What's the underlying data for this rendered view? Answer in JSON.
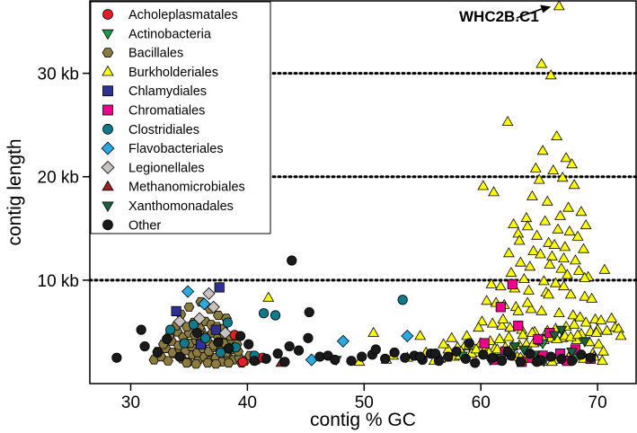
{
  "chart_data": {
    "type": "scatter",
    "title": "",
    "xlabel": "contig % GC",
    "ylabel": "contig length",
    "xlim": [
      26.5,
      73.3
    ],
    "ylim": [
      0,
      37000
    ],
    "x_ticks": [
      30,
      40,
      50,
      60,
      70
    ],
    "x_tick_labels": [
      "30",
      "40",
      "50",
      "60",
      "70"
    ],
    "y_ticks": [
      10000,
      20000,
      30000
    ],
    "y_tick_labels": [
      "10 kb",
      "20 kb",
      "30 kb"
    ],
    "reference_lines": [
      10000,
      20000,
      30000
    ],
    "grid": false,
    "legend_position": "top-left",
    "annotations": [
      {
        "text": "WHC2B.C1",
        "points_to": {
          "x": 66.7,
          "y": 36700
        }
      }
    ],
    "series": [
      {
        "name": "Acholeplasmatales",
        "marker": "circle",
        "color": "#e31e24",
        "x": [
          38.9,
          41.3,
          39.6
        ],
        "y": [
          4700,
          2500,
          2100
        ]
      },
      {
        "name": "Actinobacteria",
        "marker": "triangle-down",
        "color": "#1a9a4a",
        "x": [
          47.6,
          58.4,
          65.3,
          68.2
        ],
        "y": [
          2300,
          2700,
          3900,
          2600
        ]
      },
      {
        "name": "Bacillales",
        "marker": "hexagon",
        "color": "#8c7b3e",
        "x": [
          32.0,
          32.6,
          33.2,
          33.8,
          34.4,
          34.9,
          35.3,
          35.8,
          36.3,
          36.8,
          37.3,
          37.8,
          38.3,
          38.8,
          39.3,
          39.8,
          32.3,
          33.0,
          33.6,
          34.2,
          34.7,
          35.2,
          35.7,
          36.2,
          36.7,
          37.2,
          37.7,
          38.2,
          38.7,
          39.2,
          32.8,
          33.5,
          34.1,
          34.6,
          35.1,
          35.6,
          36.1,
          36.6,
          37.1,
          37.6,
          38.1,
          38.6,
          39.1,
          33.3,
          34.0,
          34.5,
          35.0,
          35.5,
          36.0,
          36.5,
          37.0,
          37.5,
          38.0,
          38.5,
          33.9,
          34.8,
          35.4,
          35.9,
          36.4,
          36.9,
          37.4,
          37.9,
          34.3,
          35.0,
          36.0,
          36.8,
          37.5,
          38.2,
          40.2,
          40.8,
          34.8,
          35.6,
          36.6,
          37.3,
          38.4,
          39.5
        ],
        "y": [
          2300,
          2600,
          2200,
          2900,
          2400,
          2100,
          2800,
          2300,
          2600,
          2200,
          2500,
          2100,
          2700,
          2300,
          2500,
          2200,
          3100,
          3400,
          3000,
          3300,
          3200,
          3600,
          3000,
          3400,
          3100,
          3500,
          3200,
          3000,
          3300,
          3100,
          3800,
          4100,
          3700,
          4000,
          3900,
          4200,
          3800,
          4100,
          3700,
          4000,
          3900,
          4300,
          3800,
          4600,
          5000,
          4500,
          4900,
          4700,
          5200,
          4600,
          4900,
          4500,
          4800,
          4600,
          5600,
          5500,
          5900,
          5400,
          6000,
          5700,
          5500,
          5300,
          6700,
          7400,
          7900,
          7200,
          6600,
          6300,
          2700,
          2300,
          2000,
          1900,
          2000,
          1900,
          2000,
          2000
        ]
      },
      {
        "name": "Burkholderiales",
        "marker": "triangle-up",
        "color": "#ffff00",
        "x": [
          66.7,
          65.2,
          66.0,
          62.3,
          65.3,
          66.5,
          67.3,
          67.8,
          66.2,
          67.0,
          65.0,
          64.7,
          60.2,
          61.1,
          68.0,
          64.4,
          65.7,
          67.5,
          68.6,
          66.8,
          63.9,
          65.5,
          62.8,
          64.0,
          69.0,
          66.6,
          67.6,
          63.2,
          64.8,
          68.3,
          63.3,
          65.8,
          66.3,
          67.2,
          68.8,
          64.5,
          62.4,
          65.1,
          66.1,
          67.1,
          68.1,
          63.4,
          65.9,
          64.2,
          66.9,
          68.4,
          62.6,
          67.4,
          69.2,
          63.7,
          65.4,
          66.4,
          60.9,
          61.7,
          62.9,
          64.1,
          65.6,
          67.7,
          68.9,
          69.5,
          60.5,
          61.3,
          62.0,
          63.0,
          64.3,
          65.2,
          66.7,
          67.9,
          68.5,
          69.8,
          60.1,
          61.0,
          61.8,
          62.5,
          63.5,
          64.6,
          65.9,
          66.2,
          67.0,
          68.2,
          69.3,
          70.1,
          58.6,
          59.4,
          60.4,
          61.5,
          62.2,
          63.1,
          63.8,
          64.9,
          65.3,
          66.6,
          67.5,
          68.7,
          69.6,
          70.5,
          57.2,
          58.0,
          59.0,
          60.0,
          60.8,
          61.6,
          62.4,
          63.6,
          64.4,
          65.7,
          66.4,
          67.3,
          68.0,
          69.0,
          70.3,
          71.2,
          56.5,
          57.7,
          58.5,
          59.5,
          60.3,
          61.2,
          62.7,
          63.9,
          64.7,
          65.4,
          66.0,
          67.2,
          68.6,
          69.4,
          70.0,
          71.5,
          56.0,
          57.0,
          58.2,
          59.2,
          60.6,
          61.4,
          62.1,
          63.3,
          64.5,
          65.1,
          66.5,
          67.7,
          68.3,
          69.9,
          70.8,
          71.8,
          55.3,
          56.8,
          58.8,
          59.8,
          61.9,
          63.2,
          64.0,
          65.8,
          67.1,
          68.9,
          70.6,
          72.0,
          41.8,
          50.8,
          52.5,
          54.8,
          57.5,
          49.6,
          51.9,
          53.7,
          56.2,
          58.3,
          59.6,
          60.7,
          62.0,
          63.4,
          64.8,
          66.1,
          67.4,
          68.8,
          69.7,
          70.4
        ],
        "y": [
          36700,
          30900,
          29800,
          25300,
          22500,
          23900,
          21800,
          21200,
          20600,
          19900,
          19700,
          20800,
          19100,
          18500,
          19200,
          18100,
          17600,
          17000,
          16600,
          16200,
          16000,
          15700,
          15400,
          15200,
          15300,
          14900,
          14700,
          14500,
          14300,
          14200,
          13800,
          13600,
          13400,
          13200,
          13000,
          12800,
          12600,
          12500,
          12300,
          12100,
          11900,
          11700,
          11500,
          11300,
          11100,
          10900,
          10700,
          10500,
          10300,
          10100,
          9900,
          9700,
          9600,
          9400,
          9200,
          9000,
          8800,
          8600,
          8400,
          8200,
          8000,
          7800,
          7600,
          7400,
          7200,
          7000,
          6800,
          6600,
          6400,
          6200,
          6000,
          5800,
          5600,
          5400,
          5200,
          5000,
          4800,
          4600,
          4400,
          4200,
          4000,
          3800,
          3600,
          3400,
          3200,
          3000,
          2800,
          2600,
          2400,
          2200,
          2100,
          2300,
          2500,
          2700,
          2900,
          3100,
          3300,
          3500,
          3700,
          3900,
          4100,
          4300,
          4500,
          4700,
          4900,
          5100,
          5300,
          5500,
          5700,
          5900,
          6100,
          6300,
          2400,
          2600,
          2800,
          3000,
          3200,
          3400,
          3600,
          3800,
          4000,
          4200,
          4400,
          4600,
          4800,
          5000,
          5200,
          5400,
          2200,
          2500,
          2700,
          2900,
          3100,
          3300,
          3500,
          3700,
          3900,
          4100,
          4300,
          4500,
          4700,
          4900,
          5100,
          5300,
          3000,
          3800,
          4600,
          5400,
          6200,
          7000,
          7800,
          8600,
          9400,
          10200,
          11000,
          4600,
          8300,
          4900,
          2700,
          4600,
          4400,
          2100,
          2300,
          2500,
          2800,
          3100,
          3300,
          3000,
          2700,
          2500,
          2300,
          2100,
          2200,
          2400,
          2600,
          2200
        ]
      },
      {
        "name": "Chlamydiales",
        "marker": "square",
        "color": "#2e3192",
        "x": [
          37.6,
          33.9,
          37.3,
          36.0
        ],
        "y": [
          9300,
          7000,
          5200,
          3800
        ]
      },
      {
        "name": "Chromatiales",
        "marker": "square",
        "color": "#ec008c",
        "x": [
          62.7,
          61.7,
          63.2,
          65.9,
          60.3,
          62.1,
          64.4,
          66.8,
          68.1,
          69.4,
          63.5,
          65.3,
          67.4,
          61.3,
          64.9
        ],
        "y": [
          9600,
          7400,
          5600,
          4900,
          3900,
          3100,
          2500,
          2900,
          3300,
          2400,
          2100,
          2700,
          2200,
          2300,
          4300
        ]
      },
      {
        "name": "Clostridiales",
        "marker": "circle",
        "color": "#0e7b8c",
        "x": [
          53.3,
          41.4,
          42.4,
          38.3,
          35.4,
          33.4,
          36.4,
          34.6,
          39.0,
          37.7,
          40.6
        ],
        "y": [
          8100,
          6800,
          6600,
          5900,
          5700,
          5200,
          4400,
          3900,
          3500,
          3000,
          2700
        ]
      },
      {
        "name": "Flavobacteriales",
        "marker": "diamond",
        "color": "#29abe2",
        "x": [
          34.9,
          53.7,
          48.2,
          45.5,
          36.3
        ],
        "y": [
          8900,
          4600,
          4100,
          2300,
          7700
        ]
      },
      {
        "name": "Legionellales",
        "marker": "diamond",
        "color": "#c7c2c0",
        "x": [
          36.7,
          37.1,
          34.2,
          35.9,
          38.1
        ],
        "y": [
          8700,
          7400,
          6000,
          6300,
          4900
        ]
      },
      {
        "name": "Methanomicrobiales",
        "marker": "triangle-up",
        "color": "#9e1f1f",
        "x": [
          42.9
        ],
        "y": [
          2000
        ]
      },
      {
        "name": "Xanthomonadales",
        "marker": "triangle-down",
        "color": "#1e5e3a",
        "x": [
          62.9,
          64.6,
          66.3,
          67.8,
          65.4,
          61.8,
          63.7,
          68.9,
          60.8,
          66.9
        ],
        "y": [
          3600,
          2800,
          4700,
          3100,
          2200,
          2500,
          3300,
          4100,
          2300,
          5200
        ]
      },
      {
        "name": "Other",
        "marker": "circle",
        "color": "#1a1a1a",
        "x": [
          28.8,
          30.9,
          31.2,
          32.3,
          33.1,
          34.2,
          35.7,
          37.5,
          38.4,
          39.4,
          40.1,
          40.6,
          41.6,
          42.6,
          43.2,
          43.8,
          44.4,
          45.3,
          46.2,
          46.9,
          47.5,
          48.9,
          49.8,
          50.7,
          51.8,
          52.6,
          53.5,
          54.3,
          55.0,
          55.7,
          56.4,
          57.2,
          57.9,
          58.7,
          59.5,
          60.2,
          61.0,
          61.8,
          62.6,
          63.4,
          64.2,
          65.1,
          66.0,
          66.9,
          67.8,
          68.6,
          69.4,
          43.6,
          45.2,
          56.1,
          51.0,
          59.0,
          54.8,
          62.3,
          64.8
        ],
        "y": [
          2500,
          5200,
          3600,
          3000,
          4300,
          2600,
          4900,
          4000,
          3400,
          4600,
          3800,
          2200,
          2400,
          2900,
          2100,
          11900,
          3200,
          6900,
          2600,
          2700,
          2300,
          2200,
          2600,
          2800,
          2400,
          3000,
          2500,
          2700,
          2300,
          2900,
          2200,
          2600,
          3100,
          2400,
          2000,
          2800,
          2500,
          2200,
          2700,
          2100,
          2900,
          2300,
          2600,
          2400,
          2200,
          2800,
          2500,
          3600,
          4400,
          2900,
          3300,
          3900,
          2600,
          3100,
          2100
        ]
      }
    ]
  }
}
